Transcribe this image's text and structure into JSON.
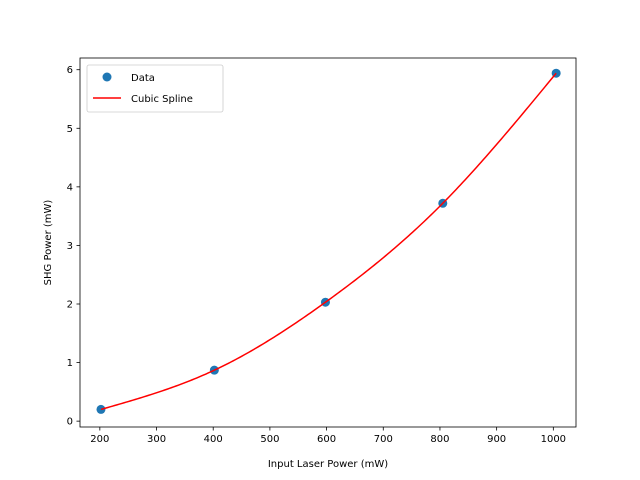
{
  "chart_data": {
    "type": "scatter",
    "title": "",
    "xlabel": "Input Laser Power (mW)",
    "ylabel": "SHG Power (mW)",
    "xlim": [
      165,
      1040
    ],
    "ylim": [
      -0.1,
      6.2
    ],
    "xticks": [
      200,
      300,
      400,
      500,
      600,
      700,
      800,
      900,
      1000
    ],
    "yticks": [
      0,
      1,
      2,
      3,
      4,
      5,
      6
    ],
    "grid": false,
    "legend_position": "top-left",
    "series": [
      {
        "name": "Data",
        "kind": "scatter",
        "color": "#1f77b4",
        "x": [
          202,
          402,
          598,
          805,
          1005
        ],
        "y": [
          0.2,
          0.87,
          2.03,
          3.72,
          5.94
        ]
      },
      {
        "name": "Cubic Spline",
        "kind": "line",
        "color": "#ff0000",
        "knots_x": [
          202,
          402,
          598,
          805,
          1005
        ],
        "knots_y": [
          0.2,
          0.87,
          2.03,
          3.72,
          5.94
        ]
      }
    ]
  }
}
